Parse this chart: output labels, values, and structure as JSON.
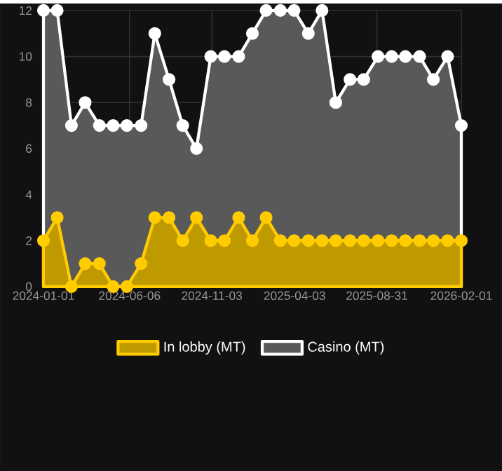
{
  "chart_data": {
    "type": "area",
    "x": [
      "2024-01-01",
      "2024-01-26",
      "2024-02-21",
      "2024-03-17",
      "2024-04-12",
      "2024-05-07",
      "2024-06-01",
      "2024-06-27",
      "2024-07-22",
      "2024-08-17",
      "2024-09-11",
      "2024-10-06",
      "2024-11-01",
      "2024-11-26",
      "2024-12-22",
      "2025-01-16",
      "2025-02-10",
      "2025-03-08",
      "2025-04-02",
      "2025-04-28",
      "2025-05-23",
      "2025-06-17",
      "2025-07-13",
      "2025-08-07",
      "2025-09-02",
      "2025-09-27",
      "2025-10-22",
      "2025-11-17",
      "2025-12-12",
      "2026-01-07",
      "2026-02-01"
    ],
    "series": [
      {
        "name": "In lobby (MT)",
        "color": "#ffcc00",
        "values": [
          2,
          3,
          0,
          1,
          1,
          0,
          0,
          1,
          3,
          3,
          2,
          3,
          2,
          2,
          3,
          2,
          3,
          2,
          2,
          2,
          2,
          2,
          2,
          2,
          2,
          2,
          2,
          2,
          2,
          2,
          2
        ]
      },
      {
        "name": "Casino (MT)",
        "color": "#ffffff",
        "values": [
          12,
          12,
          7,
          8,
          7,
          7,
          7,
          7,
          11,
          9,
          7,
          6,
          10,
          10,
          10,
          11,
          12,
          12,
          12,
          11,
          12,
          8,
          9,
          9,
          10,
          10,
          10,
          10,
          9,
          10,
          7
        ]
      }
    ],
    "xlim": [
      "2024-01-01",
      "2026-02-01"
    ],
    "xticks": [
      "2024-01-01",
      "2024-06-06",
      "2024-11-03",
      "2025-04-03",
      "2025-08-31",
      "2026-02-01"
    ],
    "ylim": [
      0,
      12
    ],
    "yticks": [
      0,
      2,
      4,
      6,
      8,
      10,
      12
    ],
    "grid": true,
    "legend": "bottom",
    "marker": "circle",
    "line_style": "solid"
  }
}
